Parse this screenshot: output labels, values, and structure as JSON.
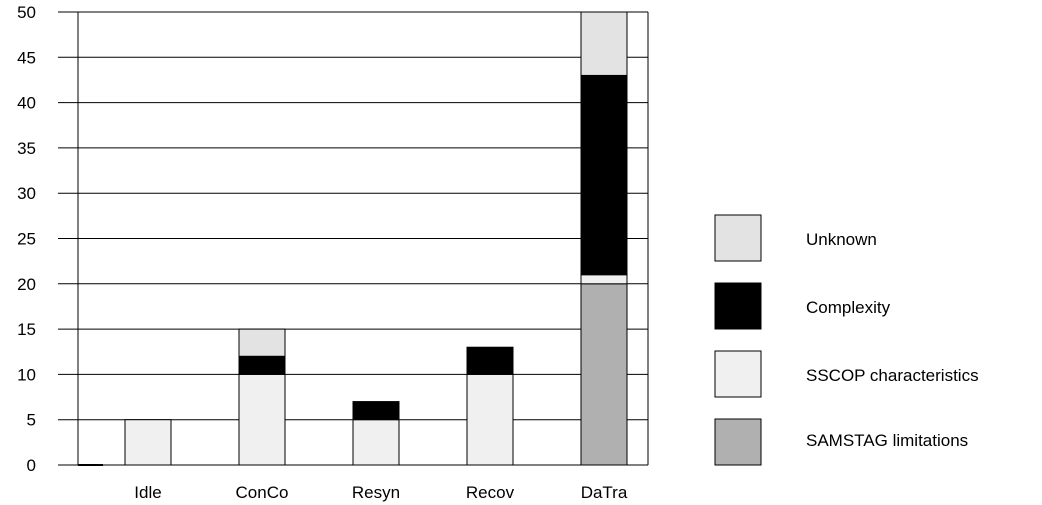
{
  "chart_data": {
    "type": "bar",
    "stacked": true,
    "categories": [
      "Idle",
      "ConCo",
      "Resyn",
      "Recov",
      "DaTra"
    ],
    "series": [
      {
        "name": "SAMSTAG limitations",
        "values": [
          0,
          0,
          0,
          0,
          20
        ],
        "color": "#b0b0b0"
      },
      {
        "name": "SSCOP characteristics",
        "values": [
          5,
          10,
          5,
          10,
          1
        ],
        "color": "#f0f0f0"
      },
      {
        "name": "Complexity",
        "values": [
          0,
          2,
          2,
          3,
          22
        ],
        "color": "#000000"
      },
      {
        "name": "Unknown",
        "values": [
          0,
          3,
          0,
          0,
          7
        ],
        "color": "#e3e3e3"
      }
    ],
    "ylim": [
      0,
      50
    ],
    "yticks": [
      0,
      5,
      10,
      15,
      20,
      25,
      30,
      35,
      40,
      45,
      50
    ],
    "grid": true,
    "legend_position": "right",
    "legend_order": [
      "Unknown",
      "Complexity",
      "SSCOP characteristics",
      "SAMSTAG limitations"
    ]
  }
}
